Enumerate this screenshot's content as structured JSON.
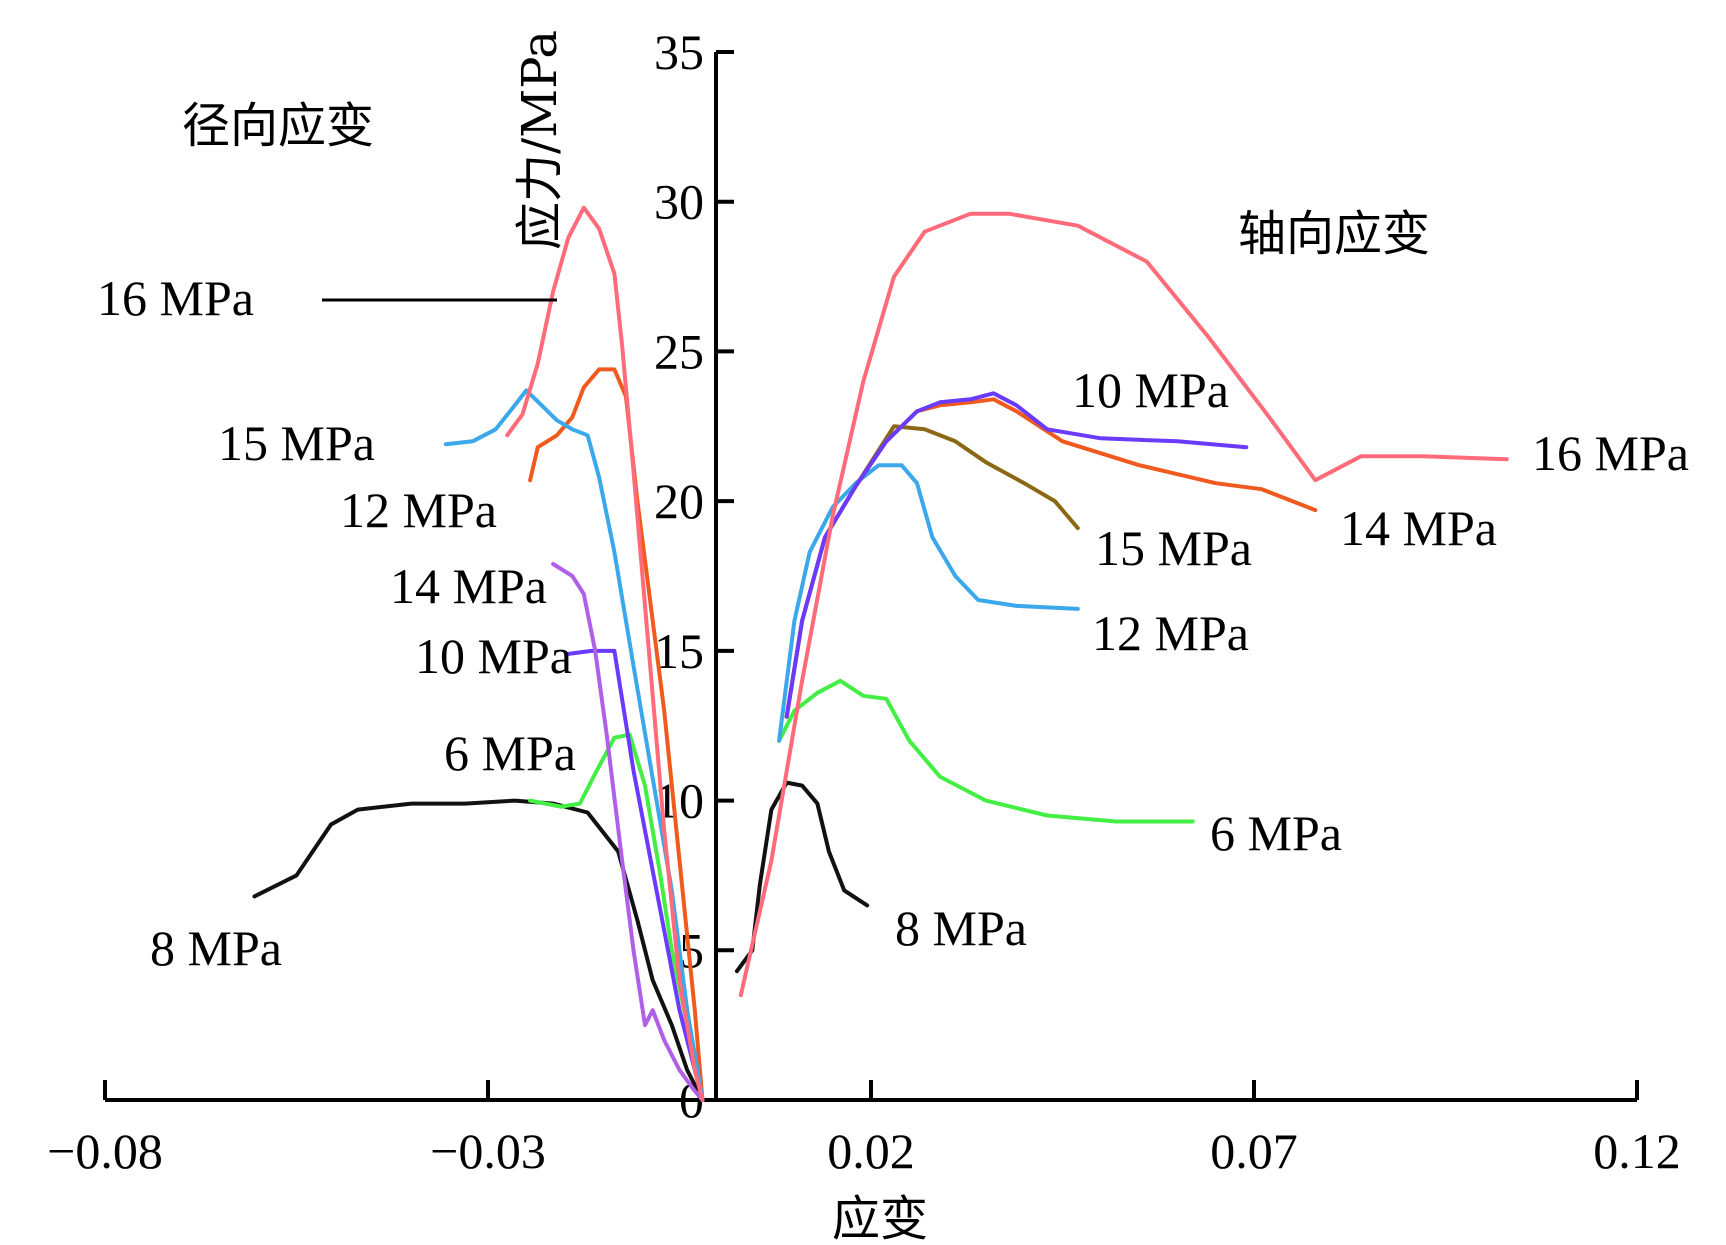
{
  "chart_data": {
    "type": "line",
    "title": "",
    "xlabel": "应变",
    "ylabel": "应力/MPa",
    "xlim": [
      -0.08,
      0.12
    ],
    "ylim": [
      0,
      35
    ],
    "x_ticks": [
      -0.08,
      -0.03,
      0.02,
      0.07,
      0.12
    ],
    "x_tick_labels": [
      "−0.08",
      "−0.03",
      "0.02",
      "0.07",
      "0.12"
    ],
    "y_ticks": [
      0,
      5,
      10,
      15,
      20,
      25,
      30,
      35
    ],
    "y_tick_labels": [
      "0",
      "5",
      "10",
      "15",
      "20",
      "25",
      "30",
      "35"
    ],
    "annotations": {
      "radial": "径向应变",
      "axial": "轴向应变"
    },
    "series": [
      {
        "id": "r16",
        "name": "16 MPa",
        "group": "radial",
        "color": "#ff6b78",
        "width": 2,
        "points": [
          [
            -0.0275,
            22.2
          ],
          [
            -0.0255,
            22.9
          ],
          [
            -0.0235,
            24.6
          ],
          [
            -0.0215,
            27.0
          ],
          [
            -0.0195,
            28.8
          ],
          [
            -0.0175,
            29.8
          ],
          [
            -0.0155,
            29.1
          ],
          [
            -0.0135,
            27.6
          ],
          [
            -0.0125,
            25.2
          ],
          [
            -0.011,
            21.0
          ],
          [
            -0.009,
            15.0
          ],
          [
            -0.007,
            9.0
          ],
          [
            -0.005,
            4.0
          ],
          [
            -0.003,
            1.0
          ],
          [
            -0.002,
            0
          ]
        ]
      },
      {
        "id": "r15",
        "name": "15 MPa",
        "group": "radial",
        "color": "#3aa8ea",
        "width": 4,
        "points": [
          [
            -0.0355,
            21.9
          ],
          [
            -0.032,
            22.0
          ],
          [
            -0.029,
            22.4
          ],
          [
            -0.0265,
            23.2
          ],
          [
            -0.025,
            23.7
          ],
          [
            -0.023,
            23.2
          ],
          [
            -0.021,
            22.7
          ],
          [
            -0.019,
            22.4
          ],
          [
            -0.017,
            22.2
          ],
          [
            -0.0155,
            20.8
          ],
          [
            -0.0135,
            18.3
          ],
          [
            -0.011,
            14.5
          ],
          [
            -0.008,
            10.0
          ],
          [
            -0.006,
            7.0
          ],
          [
            -0.004,
            3.0
          ],
          [
            -0.002,
            0
          ]
        ]
      },
      {
        "id": "r12",
        "name": "12 MPa",
        "group": "radial",
        "color": "#f05a1e",
        "width": 4,
        "points": [
          [
            -0.0245,
            20.7
          ],
          [
            -0.0235,
            21.8
          ],
          [
            -0.021,
            22.2
          ],
          [
            -0.019,
            22.8
          ],
          [
            -0.0175,
            23.8
          ],
          [
            -0.0155,
            24.4
          ],
          [
            -0.0135,
            24.4
          ],
          [
            -0.012,
            23.5
          ],
          [
            -0.0105,
            20.0
          ],
          [
            -0.009,
            17.0
          ],
          [
            -0.007,
            13.0
          ],
          [
            -0.005,
            8.0
          ],
          [
            -0.003,
            3.0
          ],
          [
            -0.002,
            0
          ]
        ]
      },
      {
        "id": "r14",
        "name": "14 MPa",
        "group": "radial",
        "color": "#b060e8",
        "width": 6,
        "points": [
          [
            -0.0215,
            17.9
          ],
          [
            -0.019,
            17.5
          ],
          [
            -0.0175,
            16.9
          ],
          [
            -0.016,
            15.0
          ],
          [
            -0.0145,
            12.2
          ],
          [
            -0.0125,
            8.0
          ],
          [
            -0.011,
            5.0
          ],
          [
            -0.0095,
            2.5
          ],
          [
            -0.0085,
            3.0
          ],
          [
            -0.007,
            2.0
          ],
          [
            -0.005,
            1.0
          ],
          [
            -0.003,
            0.3
          ],
          [
            -0.002,
            0
          ]
        ]
      },
      {
        "id": "r10",
        "name": "10 MPa",
        "group": "radial",
        "color": "#6a3aff",
        "width": 4,
        "points": [
          [
            -0.0195,
            14.9
          ],
          [
            -0.0165,
            15.0
          ],
          [
            -0.0135,
            15.0
          ],
          [
            -0.011,
            11.0
          ],
          [
            -0.008,
            7.0
          ],
          [
            -0.005,
            3.0
          ],
          [
            -0.002,
            0
          ]
        ]
      },
      {
        "id": "r6",
        "name": "6 MPa",
        "group": "radial",
        "color": "#44ee44",
        "width": 4,
        "points": [
          [
            -0.0245,
            10.0
          ],
          [
            -0.0205,
            9.8
          ],
          [
            -0.018,
            9.9
          ],
          [
            -0.016,
            10.9
          ],
          [
            -0.0135,
            12.1
          ],
          [
            -0.0115,
            12.2
          ],
          [
            -0.0095,
            10.5
          ],
          [
            -0.0075,
            7.5
          ],
          [
            -0.006,
            5.0
          ],
          [
            -0.004,
            2.5
          ],
          [
            -0.002,
            0
          ]
        ]
      },
      {
        "id": "r8",
        "name": "8 MPa",
        "group": "radial",
        "color": "#111111",
        "width": 4,
        "points": [
          [
            -0.0605,
            6.8
          ],
          [
            -0.055,
            7.5
          ],
          [
            -0.0505,
            9.2
          ],
          [
            -0.047,
            9.7
          ],
          [
            -0.04,
            9.9
          ],
          [
            -0.033,
            9.9
          ],
          [
            -0.0265,
            10.0
          ],
          [
            -0.0215,
            9.9
          ],
          [
            -0.017,
            9.6
          ],
          [
            -0.013,
            8.3
          ],
          [
            -0.0105,
            6.0
          ],
          [
            -0.0085,
            4.0
          ],
          [
            -0.006,
            2.5
          ],
          [
            -0.004,
            1.0
          ],
          [
            -0.002,
            0
          ]
        ]
      },
      {
        "id": "a16",
        "name": "16 MPa",
        "group": "axial",
        "color": "#ff6b78",
        "width": 2,
        "points": [
          [
            0.003,
            3.5
          ],
          [
            0.007,
            8.0
          ],
          [
            0.011,
            14.0
          ],
          [
            0.015,
            19.5
          ],
          [
            0.019,
            24.0
          ],
          [
            0.023,
            27.5
          ],
          [
            0.027,
            29.0
          ],
          [
            0.033,
            29.6
          ],
          [
            0.038,
            29.6
          ],
          [
            0.047,
            29.2
          ],
          [
            0.056,
            28.0
          ],
          [
            0.064,
            25.5
          ],
          [
            0.072,
            22.8
          ],
          [
            0.078,
            20.7
          ],
          [
            0.084,
            21.5
          ],
          [
            0.092,
            21.5
          ],
          [
            0.103,
            21.4
          ]
        ]
      },
      {
        "id": "a10",
        "name": "10 MPa",
        "group": "axial",
        "color": "#6a3aff",
        "width": 5,
        "points": [
          [
            0.009,
            12.8
          ],
          [
            0.011,
            16.0
          ],
          [
            0.014,
            18.8
          ],
          [
            0.018,
            20.5
          ],
          [
            0.022,
            22.0
          ],
          [
            0.026,
            23.0
          ],
          [
            0.029,
            23.3
          ],
          [
            0.033,
            23.4
          ],
          [
            0.036,
            23.6
          ],
          [
            0.039,
            23.2
          ],
          [
            0.043,
            22.4
          ],
          [
            0.05,
            22.1
          ],
          [
            0.06,
            22.0
          ],
          [
            0.069,
            21.8
          ]
        ]
      },
      {
        "id": "a14",
        "name": "14 MPa",
        "group": "axial",
        "color": "#f05a1e",
        "width": 4,
        "points": [
          [
            0.009,
            12.8
          ],
          [
            0.011,
            16.0
          ],
          [
            0.014,
            18.8
          ],
          [
            0.018,
            20.5
          ],
          [
            0.022,
            22.0
          ],
          [
            0.026,
            23.0
          ],
          [
            0.029,
            23.2
          ],
          [
            0.033,
            23.3
          ],
          [
            0.036,
            23.4
          ],
          [
            0.039,
            23.0
          ],
          [
            0.045,
            22.0
          ],
          [
            0.055,
            21.2
          ],
          [
            0.065,
            20.6
          ],
          [
            0.071,
            20.4
          ],
          [
            0.078,
            19.7
          ]
        ]
      },
      {
        "id": "a15",
        "name": "15 MPa",
        "group": "axial",
        "color": "#8b6914",
        "width": 4,
        "points": [
          [
            0.009,
            12.8
          ],
          [
            0.011,
            16.0
          ],
          [
            0.014,
            18.8
          ],
          [
            0.018,
            20.5
          ],
          [
            0.021,
            21.7
          ],
          [
            0.023,
            22.5
          ],
          [
            0.027,
            22.4
          ],
          [
            0.031,
            22.0
          ],
          [
            0.035,
            21.3
          ],
          [
            0.04,
            20.6
          ],
          [
            0.044,
            20.0
          ],
          [
            0.047,
            19.1
          ]
        ]
      },
      {
        "id": "a12",
        "name": "12 MPa",
        "group": "axial",
        "color": "#3aa8ea",
        "width": 4,
        "points": [
          [
            0.008,
            12.0
          ],
          [
            0.01,
            16.0
          ],
          [
            0.012,
            18.3
          ],
          [
            0.015,
            19.8
          ],
          [
            0.018,
            20.6
          ],
          [
            0.021,
            21.2
          ],
          [
            0.024,
            21.2
          ],
          [
            0.026,
            20.6
          ],
          [
            0.028,
            18.8
          ],
          [
            0.031,
            17.5
          ],
          [
            0.034,
            16.7
          ],
          [
            0.039,
            16.5
          ],
          [
            0.047,
            16.4
          ]
        ]
      },
      {
        "id": "a6",
        "name": "6 MPa",
        "group": "axial",
        "color": "#44ee44",
        "width": 4,
        "points": [
          [
            0.008,
            12.0
          ],
          [
            0.01,
            13.0
          ],
          [
            0.013,
            13.6
          ],
          [
            0.016,
            14.0
          ],
          [
            0.019,
            13.5
          ],
          [
            0.022,
            13.4
          ],
          [
            0.025,
            12.0
          ],
          [
            0.029,
            10.8
          ],
          [
            0.035,
            10.0
          ],
          [
            0.043,
            9.5
          ],
          [
            0.052,
            9.3
          ],
          [
            0.062,
            9.3
          ]
        ]
      },
      {
        "id": "a8",
        "name": "8 MPa",
        "group": "axial",
        "color": "#111111",
        "width": 4,
        "points": [
          [
            0.0025,
            4.3
          ],
          [
            0.0045,
            5.0
          ],
          [
            0.0055,
            7.2
          ],
          [
            0.007,
            9.7
          ],
          [
            0.009,
            10.6
          ],
          [
            0.011,
            10.5
          ],
          [
            0.013,
            9.9
          ],
          [
            0.0145,
            8.3
          ],
          [
            0.0165,
            7.0
          ],
          [
            0.0195,
            6.5
          ]
        ]
      }
    ]
  }
}
